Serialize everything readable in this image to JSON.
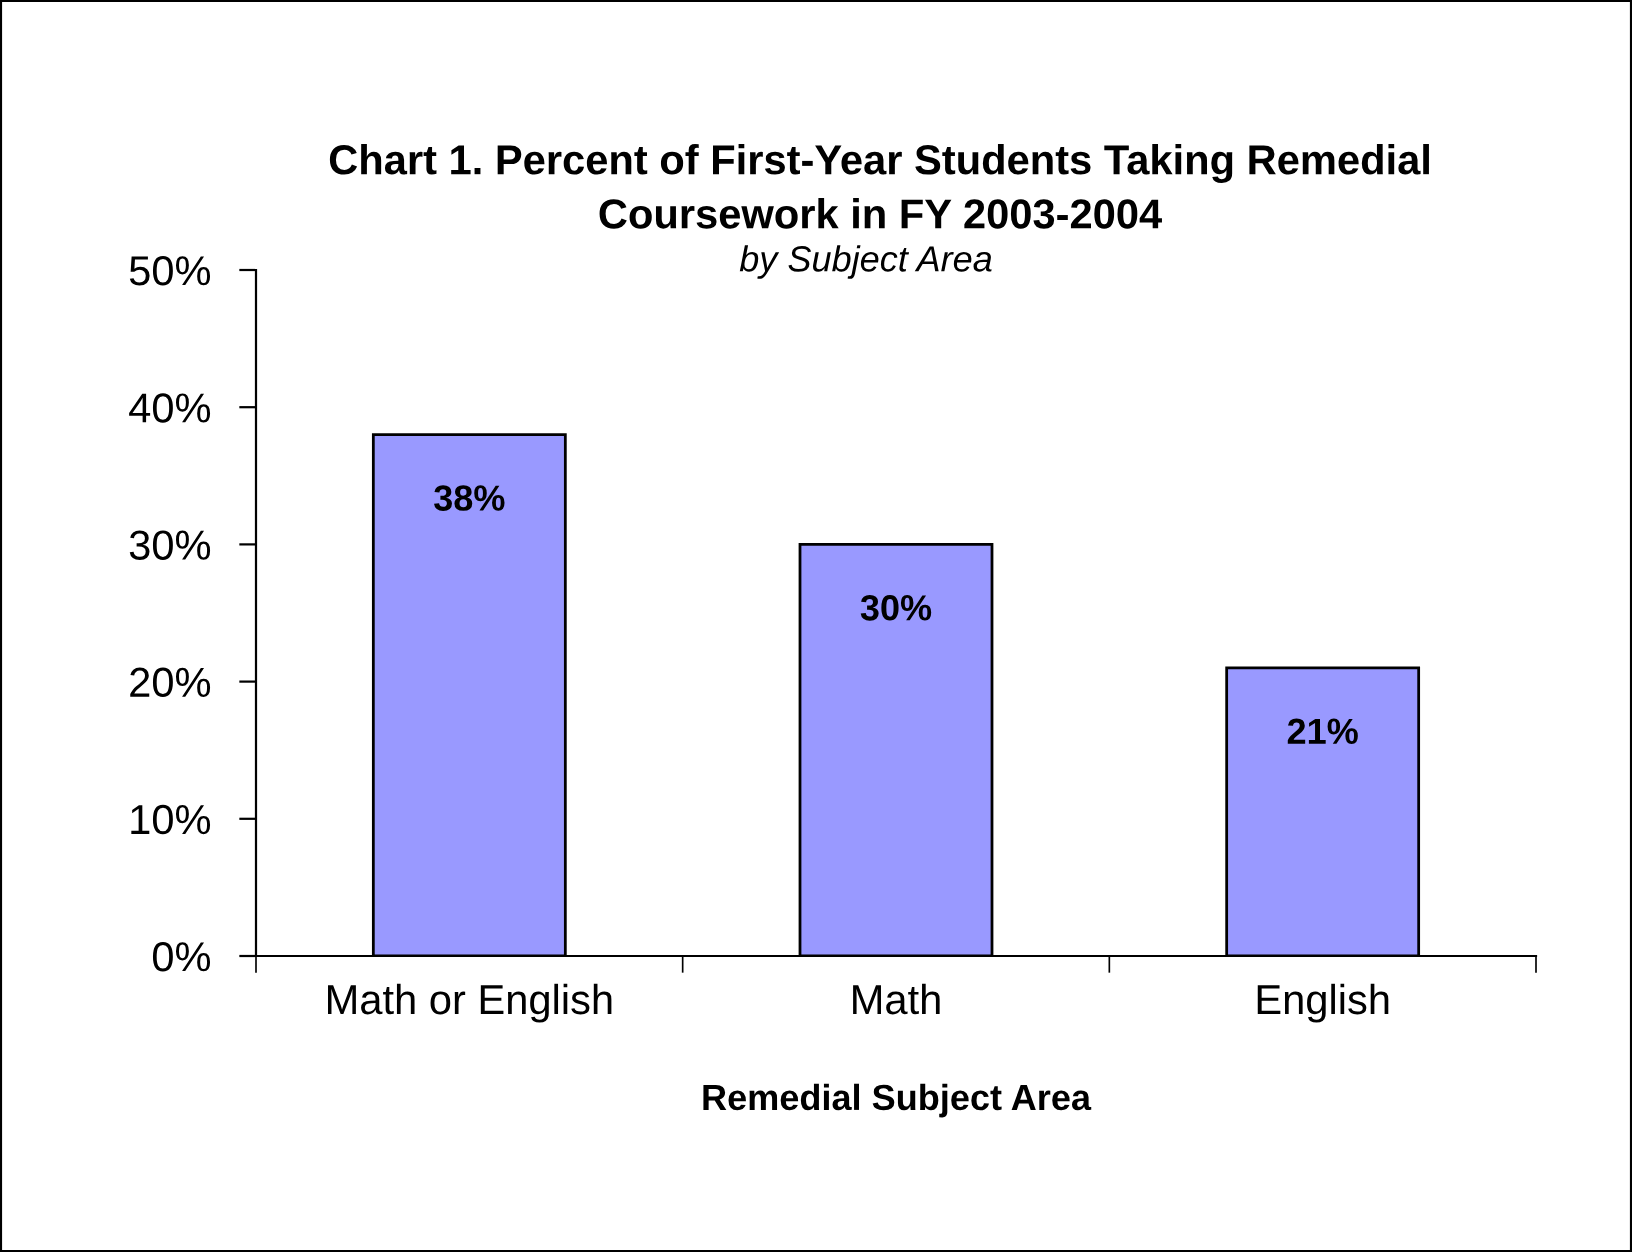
{
  "chart_data": {
    "type": "bar",
    "title": "Chart 1. Percent of First-Year Students Taking Remedial\nCoursework in FY 2003-2004",
    "subtitle": "by Subject Area",
    "xlabel": "Remedial Subject Area",
    "categories": [
      "Math or English",
      "Math",
      "English"
    ],
    "values": [
      38,
      30,
      21
    ],
    "value_labels": [
      "38%",
      "30%",
      "21%"
    ],
    "color": "#9999ff",
    "ylim": [
      0,
      50
    ],
    "yticks": [
      {
        "value": 0,
        "label": "0%"
      },
      {
        "value": 10,
        "label": "10%"
      },
      {
        "value": 20,
        "label": "20%"
      },
      {
        "value": 30,
        "label": "30%"
      },
      {
        "value": 40,
        "label": "40%"
      },
      {
        "value": 50,
        "label": "50%"
      }
    ],
    "grid": false,
    "legend": false
  }
}
